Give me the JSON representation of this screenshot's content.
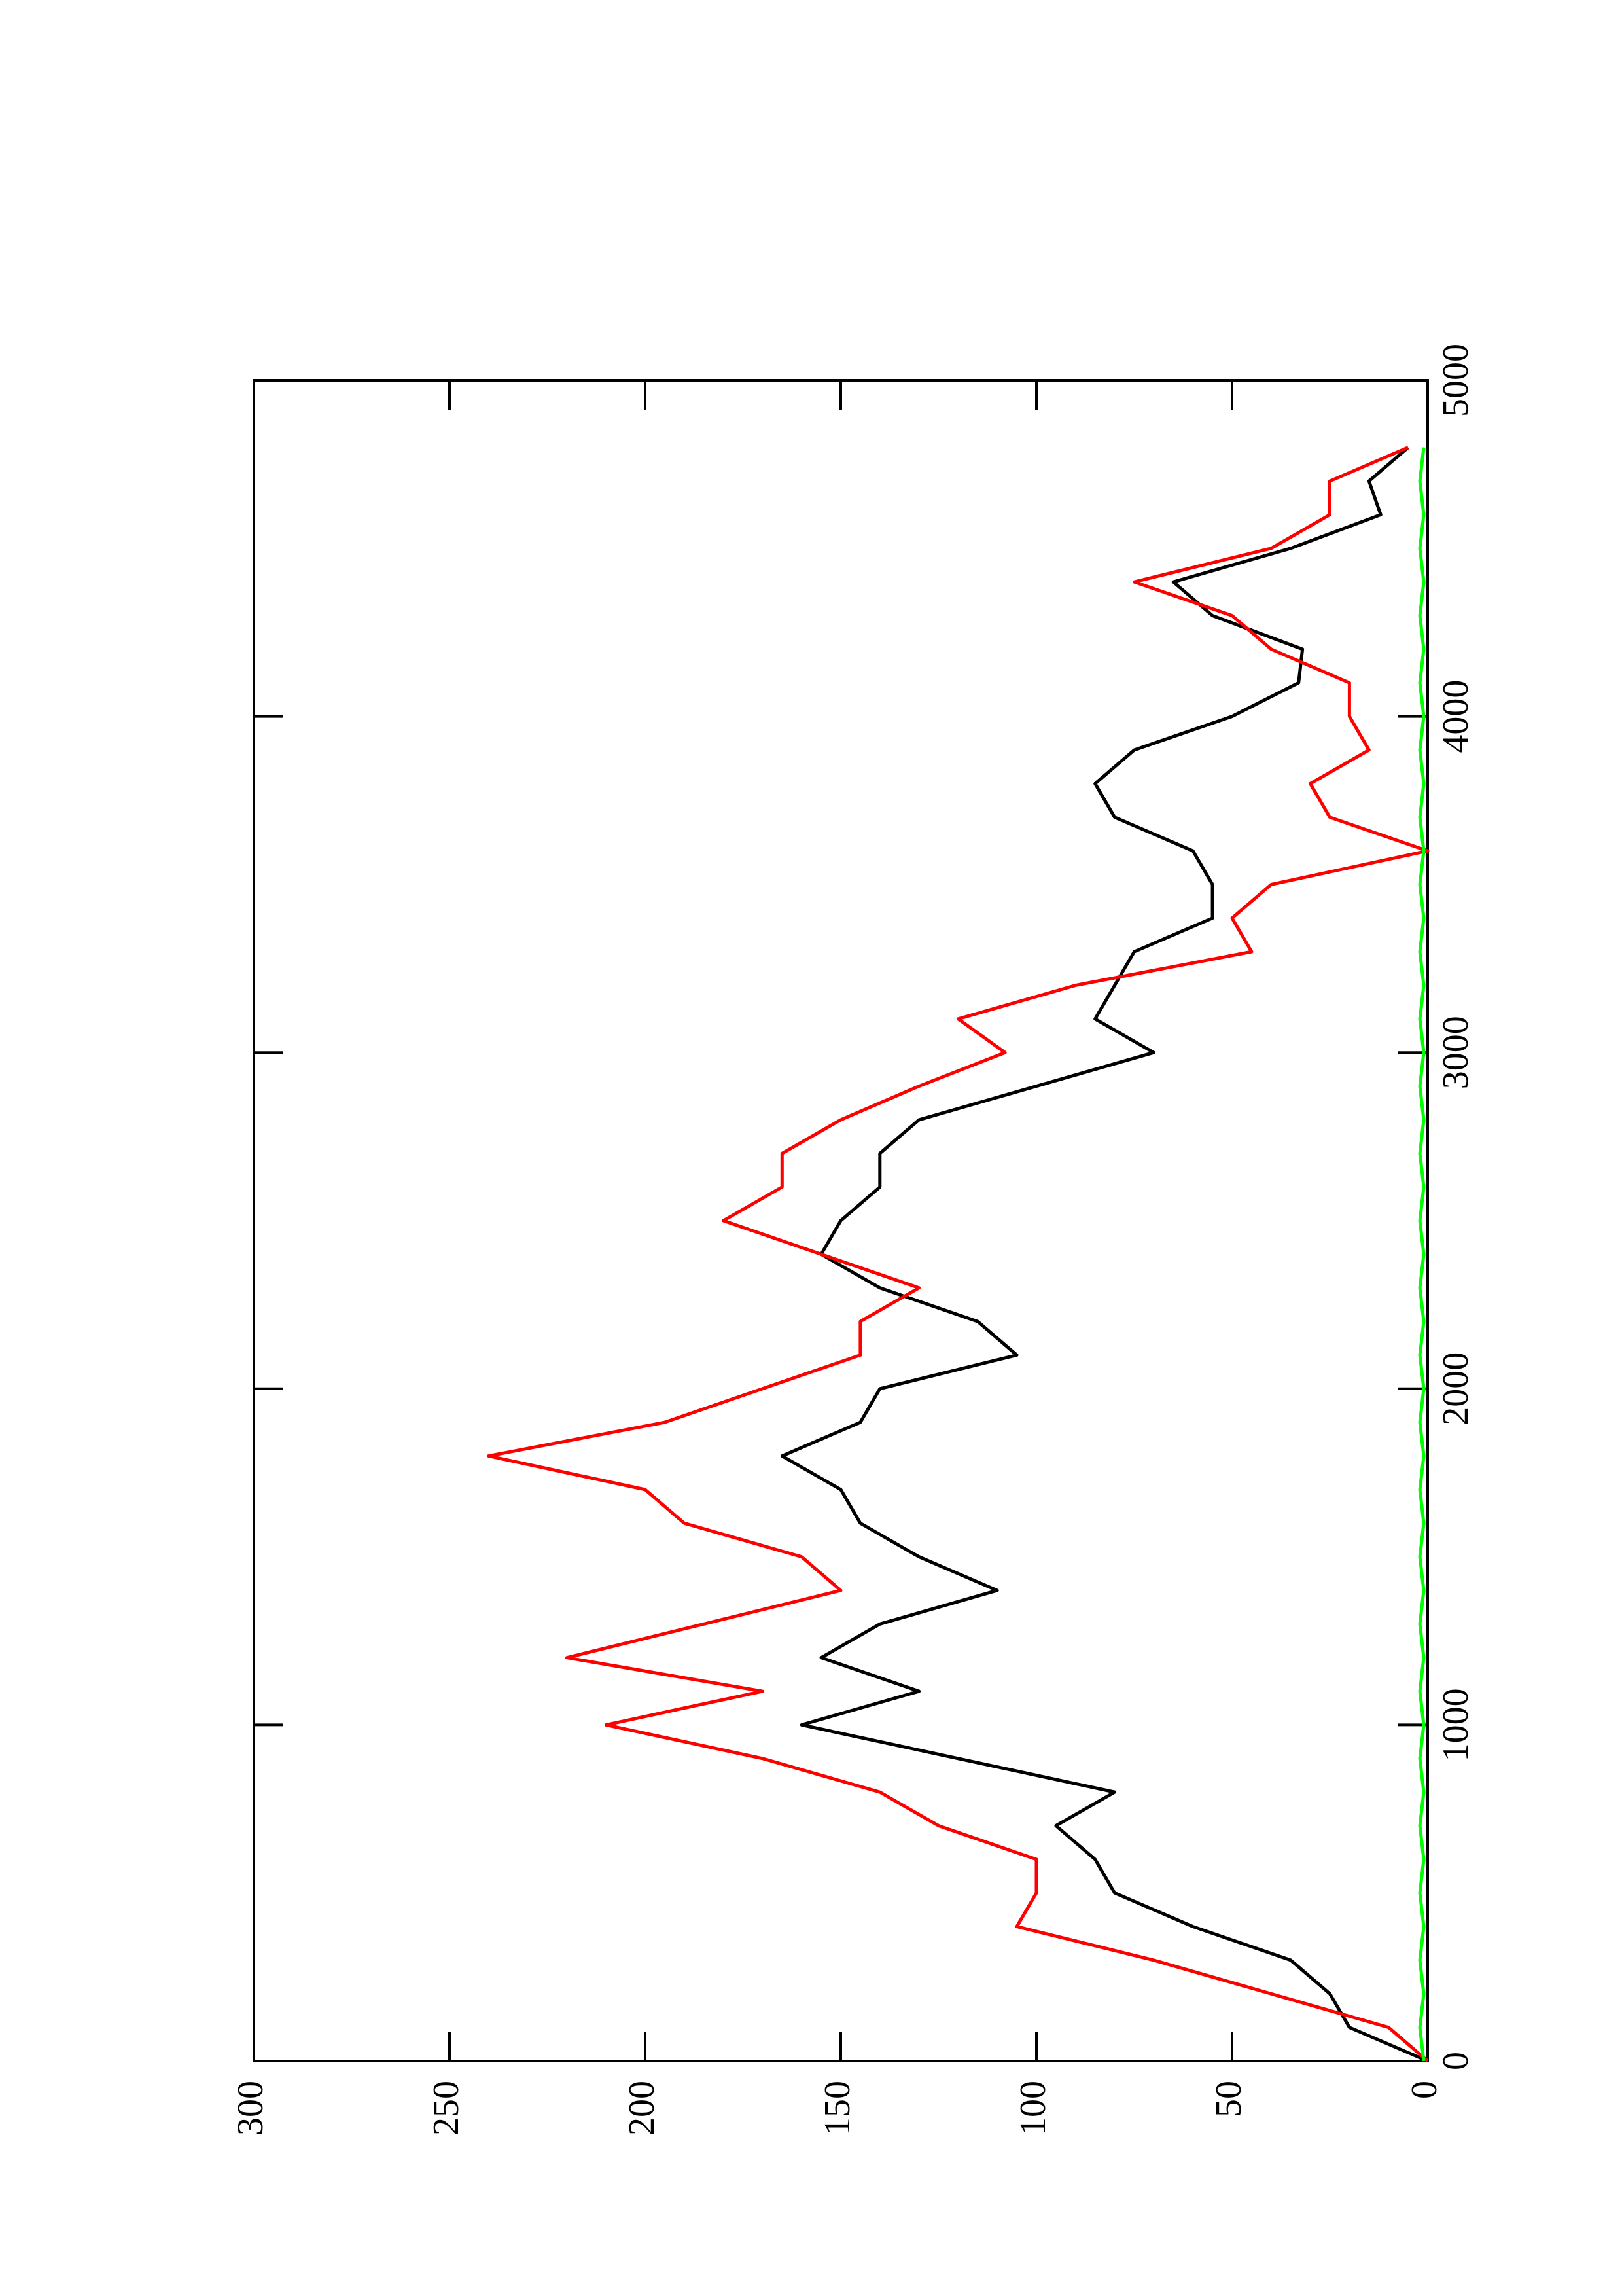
{
  "chart_data": {
    "type": "line",
    "x": [
      0,
      100,
      200,
      300,
      400,
      500,
      600,
      700,
      800,
      900,
      1000,
      1100,
      1200,
      1300,
      1400,
      1500,
      1600,
      1700,
      1800,
      1900,
      2000,
      2100,
      2200,
      2300,
      2400,
      2500,
      2600,
      2700,
      2800,
      2900,
      3000,
      3100,
      3200,
      3300,
      3400,
      3500,
      3600,
      3700,
      3800,
      3900,
      4000,
      4100,
      4200,
      4300,
      4400,
      4500,
      4600,
      4700,
      4800
    ],
    "series": [
      {
        "color": "#000000",
        "values": [
          0,
          20,
          25,
          35,
          60,
          80,
          85,
          95,
          80,
          120,
          160,
          130,
          155,
          140,
          110,
          130,
          145,
          150,
          165,
          145,
          140,
          105,
          115,
          140,
          155,
          150,
          140,
          140,
          130,
          100,
          70,
          85,
          80,
          75,
          55,
          55,
          60,
          80,
          85,
          75,
          50,
          33,
          32,
          55,
          65,
          35,
          12,
          15,
          5
        ]
      },
      {
        "color": "#ff0000",
        "values": [
          0,
          10,
          40,
          70,
          105,
          100,
          100,
          125,
          140,
          170,
          210,
          170,
          220,
          185,
          150,
          160,
          190,
          200,
          240,
          195,
          170,
          145,
          145,
          130,
          155,
          180,
          165,
          165,
          150,
          130,
          108,
          120,
          90,
          45,
          50,
          40,
          0,
          25,
          30,
          15,
          20,
          20,
          40,
          50,
          75,
          40,
          25,
          25,
          5
        ]
      },
      {
        "color": "#00ff00",
        "values": [
          1,
          2,
          1,
          2,
          1,
          2,
          1,
          2,
          1,
          2,
          1,
          2,
          1,
          2,
          1,
          2,
          1,
          2,
          1,
          2,
          1,
          2,
          1,
          2,
          1,
          2,
          1,
          2,
          1,
          2,
          1,
          2,
          1,
          2,
          1,
          2,
          1,
          2,
          1,
          2,
          1,
          2,
          1,
          2,
          1,
          2,
          1,
          2,
          1
        ]
      }
    ],
    "xlim": [
      0,
      5000
    ],
    "xticks": [
      0,
      1000,
      2000,
      3000,
      4000,
      5000
    ],
    "ylim": [
      0,
      300
    ],
    "yticks": [
      0,
      50,
      100,
      150,
      200,
      250,
      300
    ]
  }
}
